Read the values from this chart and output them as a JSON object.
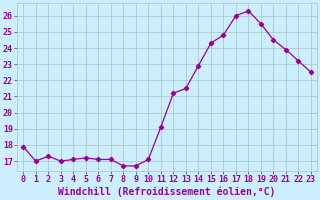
{
  "x": [
    0,
    1,
    2,
    3,
    4,
    5,
    6,
    7,
    8,
    9,
    10,
    11,
    12,
    13,
    14,
    15,
    16,
    17,
    18,
    19,
    20,
    21,
    22,
    23
  ],
  "y": [
    17.9,
    17.0,
    17.3,
    17.0,
    17.1,
    17.2,
    17.1,
    17.1,
    16.7,
    16.7,
    17.1,
    19.1,
    21.2,
    21.5,
    22.9,
    24.3,
    24.8,
    26.0,
    26.3,
    25.5,
    24.5,
    23.9,
    23.2,
    22.5
  ],
  "line_color": "#990099",
  "marker": "D",
  "marker_size": 2.2,
  "bg_color": "#cceeff",
  "grid_color": "#aacccc",
  "xlabel": "Windchill (Refroidissement éolien,°C)",
  "ylabel_ticks": [
    17,
    18,
    19,
    20,
    21,
    22,
    23,
    24,
    25,
    26
  ],
  "ylim": [
    16.4,
    26.8
  ],
  "xlim": [
    -0.5,
    23.5
  ],
  "tick_color": "#990099",
  "label_fontsize": 6.5,
  "tick_fontsize": 6.0,
  "xlabel_fontsize": 7.0
}
